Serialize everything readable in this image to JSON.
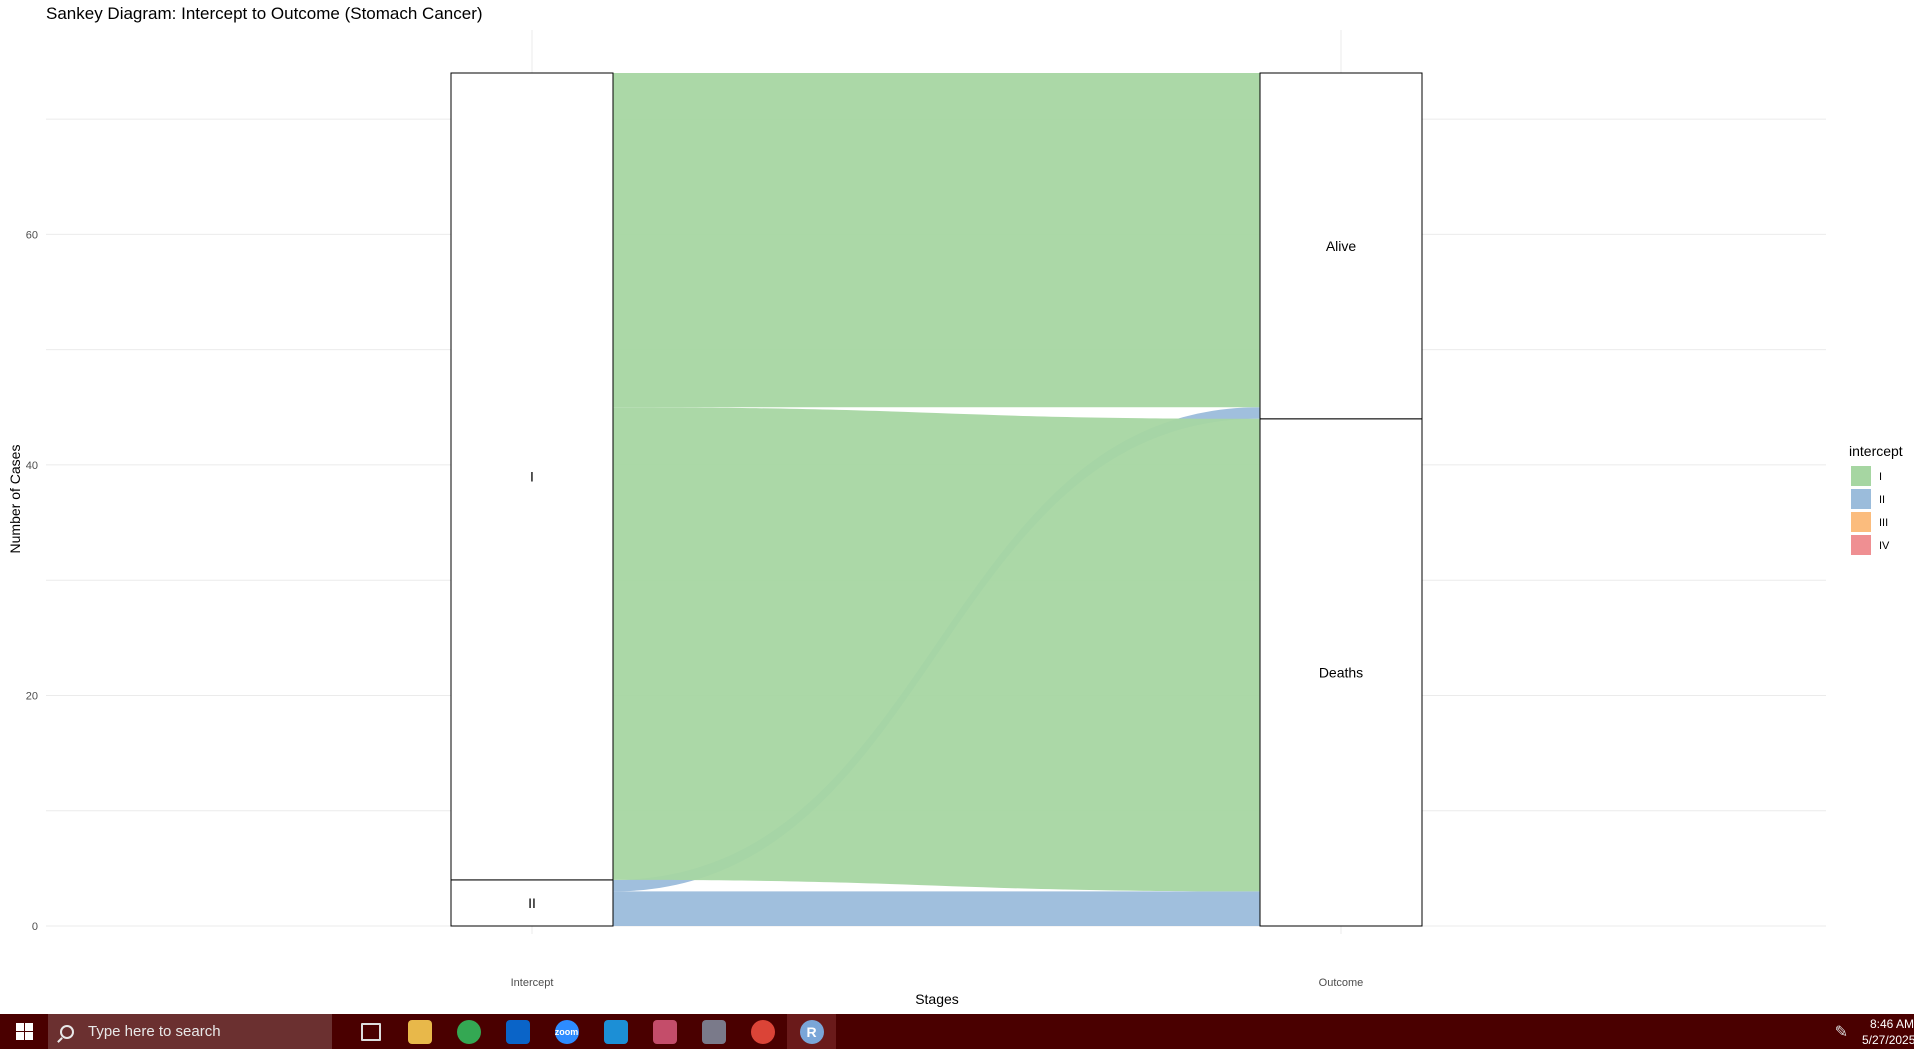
{
  "chart_data": {
    "type": "sankey",
    "title": "Sankey Diagram: Intercept to Outcome (Stomach Cancer)",
    "xlabel": "Stages",
    "ylabel": "Number of Cases",
    "ylim": [
      0,
      74
    ],
    "yticks": [
      0,
      20,
      40,
      60
    ],
    "stages": [
      "Intercept",
      "Outcome"
    ],
    "axes": [
      "Intercept",
      "Outcome"
    ],
    "strata": {
      "Intercept": [
        {
          "label": "II",
          "lower": 0,
          "upper": 4
        },
        {
          "label": "I",
          "lower": 4,
          "upper": 74
        }
      ],
      "Outcome": [
        {
          "label": "Deaths",
          "lower": 0,
          "upper": 44
        },
        {
          "label": "Alive",
          "lower": 44,
          "upper": 74
        }
      ]
    },
    "flows": [
      {
        "from": "II",
        "to": "Deaths",
        "intercept": "II",
        "count": 3
      },
      {
        "from": "II",
        "to": "Alive",
        "intercept": "II",
        "count": 1
      },
      {
        "from": "I",
        "to": "Deaths",
        "intercept": "I",
        "count": 41
      },
      {
        "from": "I",
        "to": "Alive",
        "intercept": "I",
        "count": 29
      }
    ],
    "legend": {
      "title": "intercept",
      "position": "right",
      "items": [
        {
          "label": "I",
          "color": "#a6d6a2"
        },
        {
          "label": "II",
          "color": "#9bbcdb"
        },
        {
          "label": "III",
          "color": "#fbbc7d"
        },
        {
          "label": "IV",
          "color": "#ef8f92"
        }
      ]
    },
    "grid": true
  },
  "taskbar": {
    "search_placeholder": "Type here to search",
    "time": "8:46 AM",
    "date": "5/27/2025",
    "apps": [
      {
        "name": "task-view-icon",
        "color": "#4a0000"
      },
      {
        "name": "file-explorer-icon",
        "color": "#e8b84a"
      },
      {
        "name": "chrome-icon",
        "color": "#34a853"
      },
      {
        "name": "outlook-icon",
        "color": "#0a64c8"
      },
      {
        "name": "zoom-icon",
        "color": "#2d8cff"
      },
      {
        "name": "network-app-icon",
        "color": "#1c8fd6"
      },
      {
        "name": "snipping-tool-icon",
        "color": "#c44d6a"
      },
      {
        "name": "camera-icon",
        "color": "#7a7a8a"
      },
      {
        "name": "chrome-profile-icon",
        "color": "#db4437"
      },
      {
        "name": "r-app-icon",
        "color": "#7aa6d8"
      }
    ],
    "zoom_label": "zoom"
  }
}
